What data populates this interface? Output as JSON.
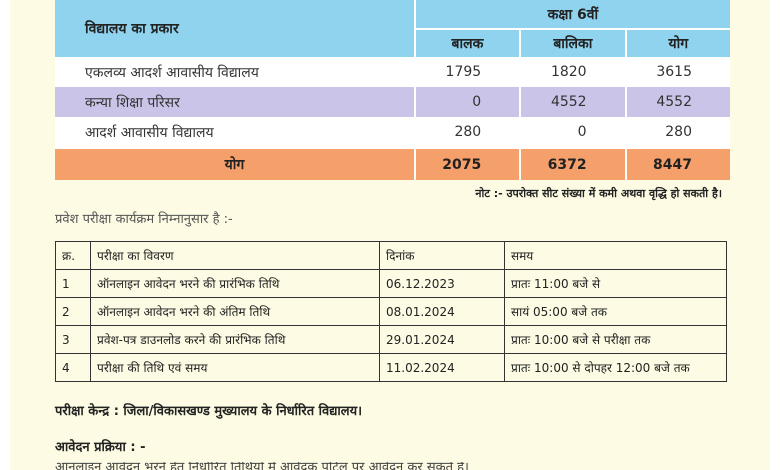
{
  "seat_table": {
    "col_type": "विद्यालय का प्रकार",
    "col_class": "कक्षा 6वीं",
    "col_boys": "बालक",
    "col_girls": "बालिका",
    "col_total": "योग",
    "rows": [
      {
        "name": "एकलव्य आदर्श आवासीय विद्यालय",
        "boys": "1795",
        "girls": "1820",
        "total": "3615"
      },
      {
        "name": "कन्या शिक्षा परिसर",
        "boys": "0",
        "girls": "4552",
        "total": "4552"
      },
      {
        "name": "आदर्श आवासीय विद्यालय",
        "boys": "280",
        "girls": "0",
        "total": "280"
      }
    ],
    "grand_total": {
      "label": "योग",
      "boys": "2075",
      "girls": "6372",
      "total": "8447"
    },
    "colors": {
      "header": "#8fd3ef",
      "lavender": "#c9c4e8",
      "total": "#f5a06a"
    }
  },
  "note": "नोट :- उपरोक्त सीट संख्या में कमी अथवा वृद्धि हो सकती है।",
  "intro": "प्रवेश परीक्षा कार्यक्रम निम्नानुसार है :-",
  "exam_table": {
    "headers": {
      "sno": "क्र.",
      "detail": "परीक्षा का विवरण",
      "date": "दिनांक",
      "time": "समय"
    },
    "rows": [
      {
        "sno": "1",
        "detail": "ऑनलाइन आवेदन भरने की प्रारंभिक तिथि",
        "date": "06.12.2023",
        "time": "प्रातः 11:00 बजे से"
      },
      {
        "sno": "2",
        "detail": "ऑनलाइन आवेदन भरने की अंतिम तिथि",
        "date": "08.01.2024",
        "time": "सायं 05:00 बजे तक"
      },
      {
        "sno": "3",
        "detail": "प्रवेश-पत्र डाउनलोड करने की प्रारंभिक तिथि",
        "date": "29.01.2024",
        "time": "प्रातः 10:00 बजे से परीक्षा तक"
      },
      {
        "sno": "4",
        "detail": "परीक्षा की तिथि एवं समय",
        "date": "11.02.2024",
        "time": "प्रातः 10:00 से दोपहर 12:00 बजे तक"
      }
    ]
  },
  "exam_center": "परीक्षा केन्द्र :  जिला/विकासखण्ड मुख्यालय के निर्धारित विद्यालय।",
  "process_heading": "आवेदन प्रक्रिया : -",
  "partial_text": "ऑनलाइन आवेदन भरने हेतु निर्धारित तिथियों में आवेदक पोर्टल पर आवेदन कर सकते हैं।"
}
